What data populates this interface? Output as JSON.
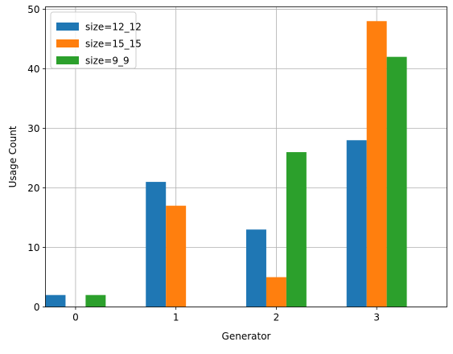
{
  "chart_data": {
    "type": "bar",
    "title": "",
    "xlabel": "Generator",
    "ylabel": "Usage Count",
    "categories": [
      "0",
      "1",
      "2",
      "3"
    ],
    "series": [
      {
        "name": "size=12_12",
        "color": "#1f77b4",
        "values": [
          2,
          21,
          13,
          28
        ]
      },
      {
        "name": "size=15_15",
        "color": "#ff7f0e",
        "values": [
          0,
          17,
          5,
          48
        ]
      },
      {
        "name": "size=9_9",
        "color": "#2ca02c",
        "values": [
          2,
          0,
          26,
          42
        ]
      }
    ],
    "ylim": [
      0,
      50.4
    ],
    "yticks": [
      0,
      10,
      20,
      30,
      40,
      50
    ],
    "grid": true,
    "legend_position": "upper-left"
  }
}
